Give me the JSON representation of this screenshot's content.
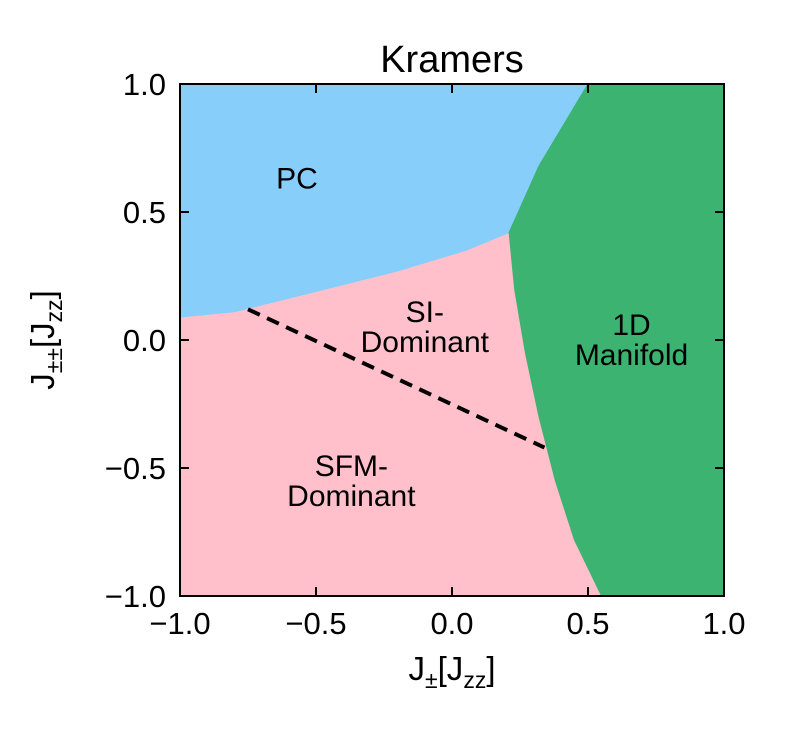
{
  "chart_data": {
    "type": "area",
    "title": "Kramers",
    "xlabel": {
      "main": "J",
      "sub": "±",
      "suffix_main": "[J",
      "suffix_sub": "zz",
      "suffix_end": "]"
    },
    "ylabel": {
      "main": "J",
      "sub": "±±",
      "suffix_main": "[J",
      "suffix_sub": "zz",
      "suffix_end": "]"
    },
    "xlim": [
      -1.0,
      1.0
    ],
    "ylim": [
      -1.0,
      1.0
    ],
    "xticks": [
      -1.0,
      -0.5,
      0.0,
      0.5,
      1.0
    ],
    "yticks": [
      -1.0,
      -0.5,
      0.0,
      0.5,
      1.0
    ],
    "xtick_labels": [
      "−1.0",
      "−0.5",
      "0.0",
      "0.5",
      "1.0"
    ],
    "ytick_labels": [
      "−1.0",
      "−0.5",
      "0.0",
      "0.5",
      "1.0"
    ],
    "regions": [
      {
        "name": "pink",
        "label_lines": [],
        "color": "#FFC0CB",
        "polygon": [
          [
            -1.0,
            -1.0
          ],
          [
            0.55,
            -1.0
          ],
          [
            0.45,
            -0.78
          ],
          [
            0.38,
            -0.55
          ],
          [
            0.32,
            -0.3
          ],
          [
            0.27,
            -0.05
          ],
          [
            0.23,
            0.2
          ],
          [
            0.21,
            0.42
          ],
          [
            0.05,
            0.35
          ],
          [
            -0.2,
            0.27
          ],
          [
            -0.5,
            0.19
          ],
          [
            -0.8,
            0.11
          ],
          [
            -1.0,
            0.09
          ]
        ]
      },
      {
        "name": "pc",
        "label_lines": [
          "PC"
        ],
        "color": "#87CEFA",
        "polygon": [
          [
            -1.0,
            0.09
          ],
          [
            -0.8,
            0.11
          ],
          [
            -0.5,
            0.19
          ],
          [
            -0.2,
            0.27
          ],
          [
            0.05,
            0.35
          ],
          [
            0.21,
            0.42
          ],
          [
            0.32,
            0.68
          ],
          [
            0.5,
            1.0
          ],
          [
            -1.0,
            1.0
          ]
        ]
      },
      {
        "name": "manifold",
        "label_lines": [
          "1D",
          "Manifold"
        ],
        "color": "#3CB371",
        "polygon": [
          [
            0.5,
            1.0
          ],
          [
            1.0,
            1.0
          ],
          [
            1.0,
            -1.0
          ],
          [
            0.55,
            -1.0
          ],
          [
            0.45,
            -0.78
          ],
          [
            0.38,
            -0.55
          ],
          [
            0.32,
            -0.3
          ],
          [
            0.27,
            -0.05
          ],
          [
            0.23,
            0.2
          ],
          [
            0.21,
            0.42
          ],
          [
            0.32,
            0.68
          ]
        ]
      }
    ],
    "region_labels": [
      {
        "lines": [
          "PC"
        ],
        "x": -0.57,
        "y": 0.63
      },
      {
        "lines": [
          "SI-",
          "Dominant"
        ],
        "x": -0.1,
        "y": 0.05
      },
      {
        "lines": [
          "1D",
          "Manifold"
        ],
        "x": 0.66,
        "y": 0.0
      },
      {
        "lines": [
          "SFM-",
          "Dominant"
        ],
        "x": -0.37,
        "y": -0.55
      }
    ],
    "boundary_line": {
      "style": "dashed",
      "color": "#000000",
      "x": [
        -0.75,
        0.34
      ],
      "y": [
        0.12,
        -0.42
      ]
    }
  }
}
